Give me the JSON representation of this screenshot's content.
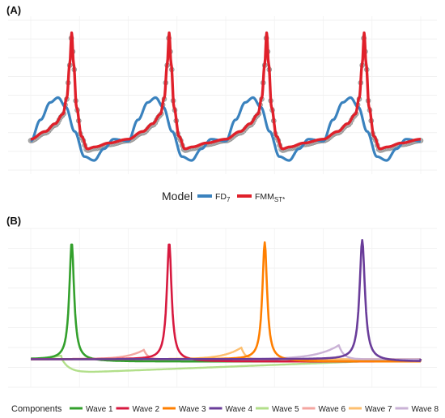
{
  "chart_data": [
    {
      "panel": "(A)",
      "type": "line",
      "grid": true,
      "xlim": [
        0,
        4
      ],
      "ylim": [
        -0.3,
        1.25
      ],
      "legend": {
        "title": "Model",
        "position": "bottom",
        "entries": [
          {
            "label": "FD",
            "sub": "7",
            "color": "#3a82be"
          },
          {
            "label": "FMM",
            "sub": "ST*",
            "color": "#e0202a"
          }
        ]
      },
      "observed_points": {
        "color": "#a6a6a6",
        "description_values": "4 periods, sharp peak near phase 0.42 of each period"
      },
      "series": [
        {
          "name": "FD7",
          "color": "#3a82be",
          "points_per_period": [
            [
              0.0,
              0.0
            ],
            [
              0.1,
              0.22
            ],
            [
              0.2,
              0.4
            ],
            [
              0.28,
              0.45
            ],
            [
              0.36,
              0.35
            ],
            [
              0.45,
              0.1
            ],
            [
              0.55,
              -0.16
            ],
            [
              0.65,
              -0.2
            ],
            [
              0.75,
              -0.08
            ],
            [
              0.85,
              0.02
            ],
            [
              1.0,
              0.0
            ]
          ]
        },
        {
          "name": "FMMST*",
          "color": "#e0202a",
          "points_per_period": [
            [
              0.0,
              0.02
            ],
            [
              0.15,
              0.1
            ],
            [
              0.25,
              0.18
            ],
            [
              0.33,
              0.28
            ],
            [
              0.37,
              0.45
            ],
            [
              0.4,
              0.8
            ],
            [
              0.42,
              1.12
            ],
            [
              0.44,
              0.8
            ],
            [
              0.47,
              0.35
            ],
            [
              0.52,
              0.05
            ],
            [
              0.58,
              -0.08
            ],
            [
              0.66,
              -0.06
            ],
            [
              0.8,
              -0.02
            ],
            [
              1.0,
              0.02
            ]
          ]
        }
      ]
    },
    {
      "panel": "(B)",
      "type": "line",
      "grid": true,
      "xlim": [
        0,
        1
      ],
      "ylim": [
        -0.15,
        1.05
      ],
      "legend": {
        "title": "Components",
        "position": "bottom",
        "entries": [
          {
            "label": "Wave 1",
            "color": "#33a02c"
          },
          {
            "label": "Wave 2",
            "color": "#d7193f"
          },
          {
            "label": "Wave 3",
            "color": "#ff7f00"
          },
          {
            "label": "Wave 4",
            "color": "#6a3d9a"
          },
          {
            "label": "Wave 5",
            "color": "#b2df8a"
          },
          {
            "label": "Wave 6",
            "color": "#f4a6a0"
          },
          {
            "label": "Wave 7",
            "color": "#fdbf6f"
          },
          {
            "label": "Wave 8",
            "color": "#cab2d6"
          }
        ]
      },
      "series": [
        {
          "name": "Wave 1",
          "color": "#33a02c",
          "center": 0.105,
          "height": 1.0,
          "width": 0.008,
          "offset": -0.02
        },
        {
          "name": "Wave 2",
          "color": "#d7193f",
          "center": 0.355,
          "height": 1.0,
          "width": 0.008,
          "offset": -0.02
        },
        {
          "name": "Wave 3",
          "color": "#ff7f00",
          "center": 0.6,
          "height": 1.0,
          "width": 0.008,
          "offset": -0.02
        },
        {
          "name": "Wave 4",
          "color": "#6a3d9a",
          "center": 0.85,
          "height": 1.02,
          "width": 0.009,
          "offset": -0.02
        },
        {
          "name": "Wave 5",
          "color": "#b2df8a",
          "center": 0.08,
          "height": -0.12,
          "width": 0.02,
          "offset": 0.0
        },
        {
          "name": "Wave 6",
          "color": "#f4a6a0",
          "center": 0.29,
          "height": 0.08,
          "width": 0.04,
          "offset": 0.0
        },
        {
          "name": "Wave 7",
          "color": "#fdbf6f",
          "center": 0.54,
          "height": 0.1,
          "width": 0.04,
          "offset": 0.0
        },
        {
          "name": "Wave 8",
          "color": "#cab2d6",
          "center": 0.79,
          "height": 0.12,
          "width": 0.05,
          "offset": 0.0
        }
      ]
    }
  ]
}
